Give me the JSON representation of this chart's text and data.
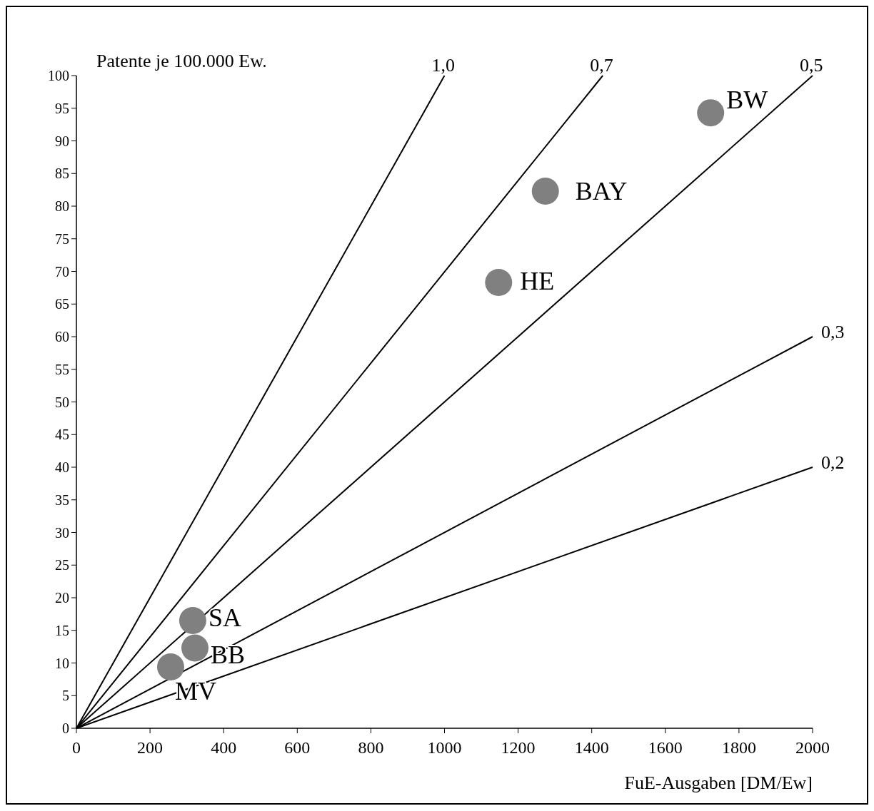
{
  "chart_data": {
    "type": "scatter",
    "xlabel": "FuE-Ausgaben [DM/Ew]",
    "ylabel": "Patente je 100.000 Ew.",
    "xlim": [
      0,
      2000
    ],
    "ylim": [
      0,
      100
    ],
    "xticks": [
      0,
      200,
      400,
      600,
      800,
      1000,
      1200,
      1400,
      1600,
      1800,
      2000
    ],
    "yticks": [
      0,
      5,
      10,
      15,
      20,
      25,
      30,
      35,
      40,
      45,
      50,
      55,
      60,
      65,
      70,
      75,
      80,
      85,
      90,
      95,
      100
    ],
    "grid": false,
    "series": [
      {
        "name": "1,0",
        "type": "line",
        "marker": "none",
        "color": "#000000",
        "x": [
          0,
          1000
        ],
        "values": [
          0,
          100
        ]
      },
      {
        "name": "0,7",
        "type": "line",
        "marker": "none",
        "color": "#000000",
        "x": [
          0,
          1430
        ],
        "values": [
          0,
          100
        ]
      },
      {
        "name": "0,5",
        "type": "line",
        "marker": "none",
        "color": "#000000",
        "x": [
          0,
          2000
        ],
        "values": [
          0,
          100
        ]
      },
      {
        "name": "0,3",
        "type": "line",
        "marker": "none",
        "color": "#000000",
        "x": [
          0,
          2000
        ],
        "values": [
          0,
          60
        ]
      },
      {
        "name": "0,2",
        "type": "line",
        "marker": "none",
        "color": "#000000",
        "x": [
          0,
          2000
        ],
        "values": [
          0,
          40
        ]
      },
      {
        "marker": "circle",
        "color": "#808080",
        "x": [
          1723,
          1274,
          1147,
          316,
          322,
          256
        ],
        "values": [
          94.3,
          82.3,
          68.3,
          16.5,
          12.3,
          9.4
        ]
      }
    ],
    "annotations": [
      {
        "text": "BW",
        "x": 1723,
        "y": 94.3
      },
      {
        "text": "BAY",
        "x": 1274,
        "y": 82.3
      },
      {
        "text": "HE",
        "x": 1147,
        "y": 68.3
      },
      {
        "text": "SA",
        "x": 316,
        "y": 16.5
      },
      {
        "text": "BB",
        "x": 322,
        "y": 12.3
      },
      {
        "text": "MV",
        "x": 256,
        "y": 9.4
      }
    ]
  }
}
